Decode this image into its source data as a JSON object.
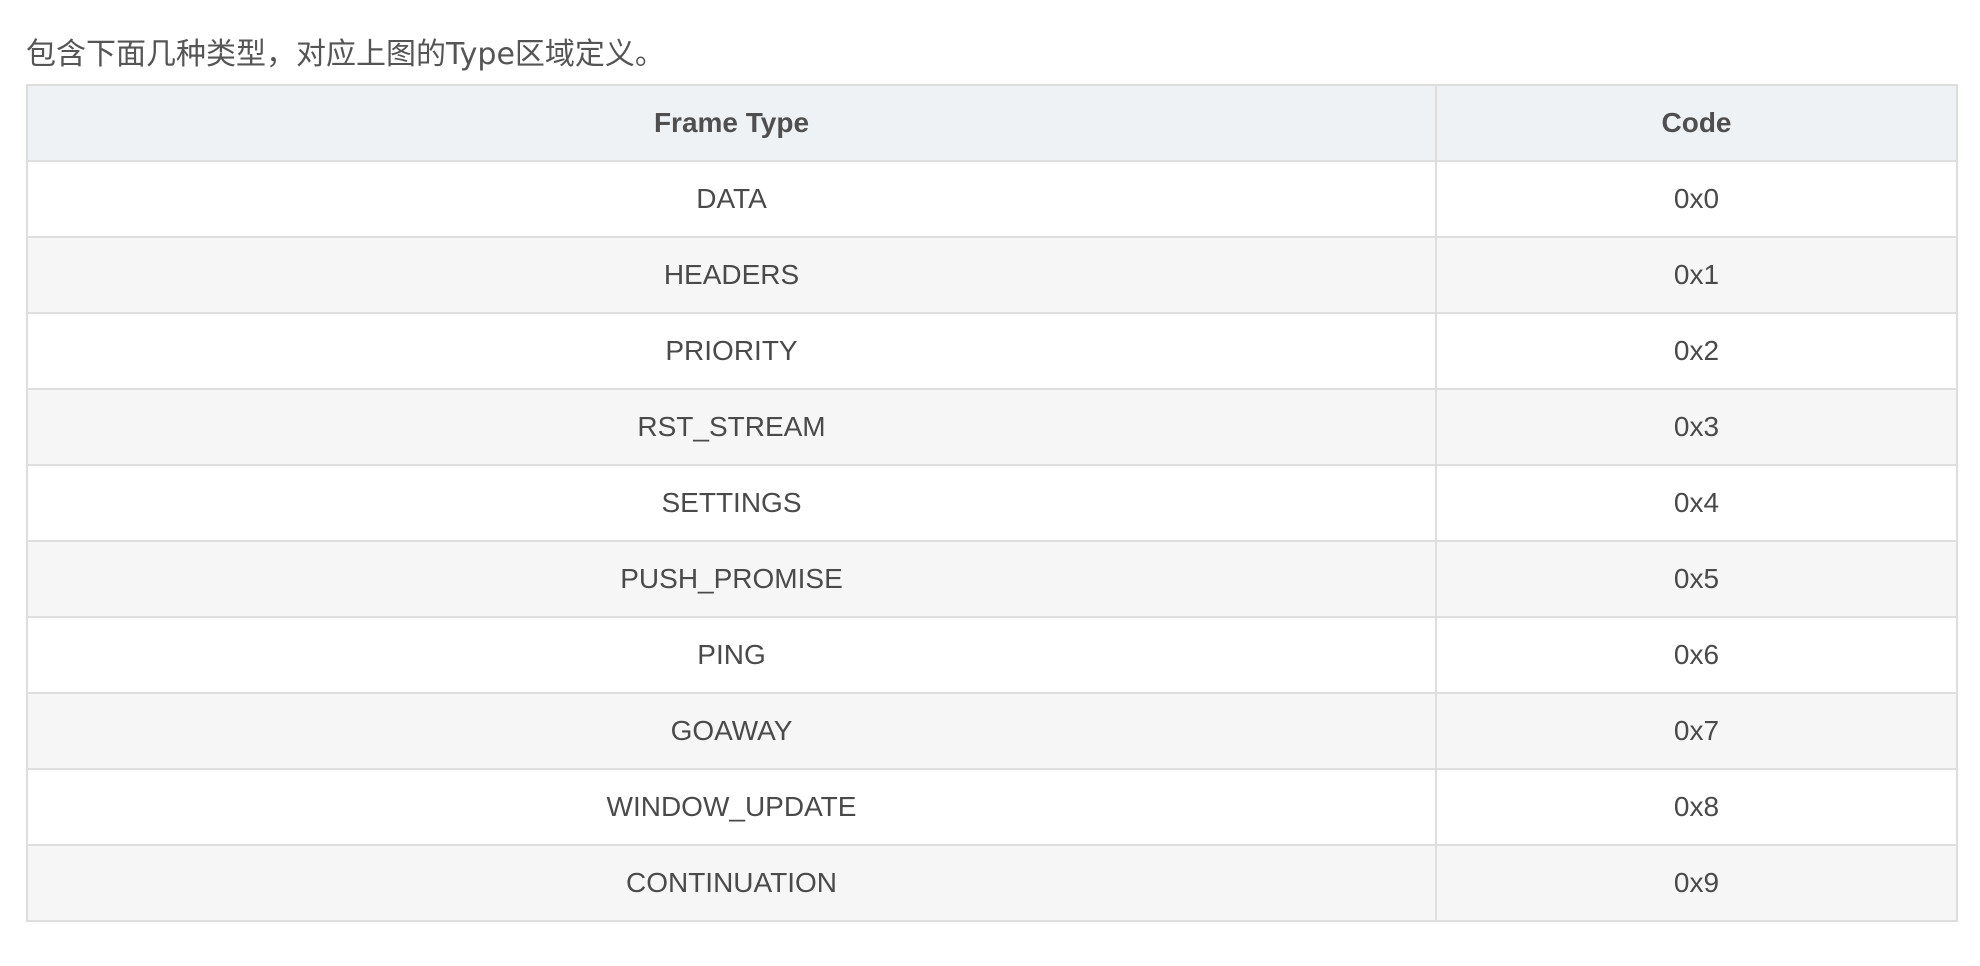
{
  "intro_text": "包含下面几种类型，对应上图的Type区域定义。",
  "table": {
    "headers": [
      "Frame Type",
      "Code"
    ],
    "rows": [
      [
        "DATA",
        "0x0"
      ],
      [
        "HEADERS",
        "0x1"
      ],
      [
        "PRIORITY",
        "0x2"
      ],
      [
        "RST_STREAM",
        "0x3"
      ],
      [
        "SETTINGS",
        "0x4"
      ],
      [
        "PUSH_PROMISE",
        "0x5"
      ],
      [
        "PING",
        "0x6"
      ],
      [
        "GOAWAY",
        "0x7"
      ],
      [
        "WINDOW_UPDATE",
        "0x8"
      ],
      [
        "CONTINUATION",
        "0x9"
      ]
    ]
  },
  "colors": {
    "header_bg": "#eef2f5",
    "stripe_bg": "#f6f6f6",
    "border": "#dedede",
    "text": "#4a4a4a"
  }
}
